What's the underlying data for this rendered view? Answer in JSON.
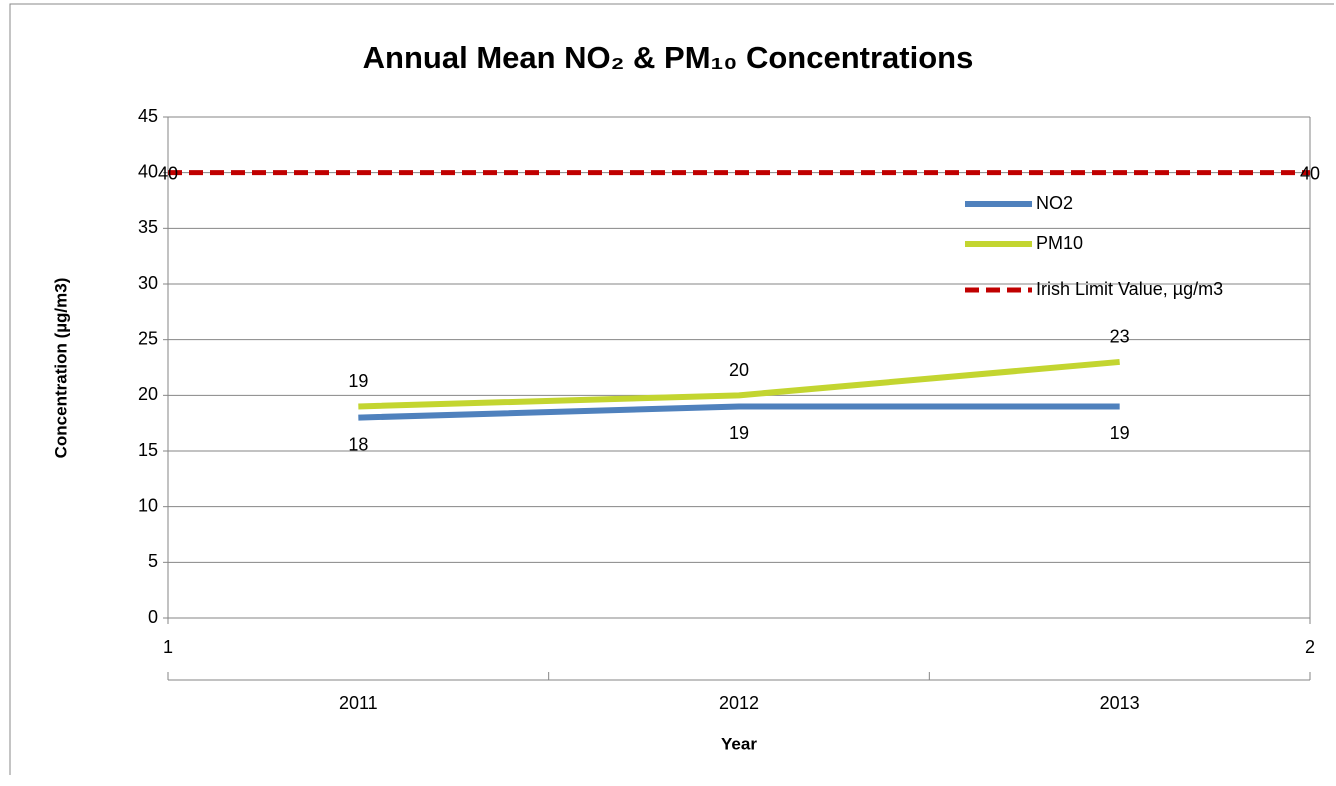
{
  "chart_data": {
    "type": "line",
    "title": "Annual Mean NO₂ & PM₁₀ Concentrations",
    "x_label": "Year",
    "y_label": "Concentration (µg/m3)",
    "categories": [
      "2011",
      "2012",
      "2013"
    ],
    "series": [
      {
        "name": "NO2",
        "color": "#4f81bd",
        "values": [
          18,
          19,
          19
        ]
      },
      {
        "name": "PM10",
        "color": "#c3d530",
        "values": [
          19,
          20,
          23
        ]
      },
      {
        "name": "Irish Limit Value, µg/m3",
        "color": "#c00000",
        "dashed": true,
        "axis": "x2",
        "x": [
          1,
          2
        ],
        "values": [
          40,
          40
        ]
      }
    ],
    "ylim": [
      0,
      45
    ],
    "yticks": [
      0,
      5,
      10,
      15,
      20,
      25,
      30,
      35,
      40,
      45
    ],
    "x2lim": [
      1,
      2
    ],
    "x2ticks": [
      1,
      2
    ],
    "grid": true,
    "legend": "right",
    "data_labels": true
  }
}
